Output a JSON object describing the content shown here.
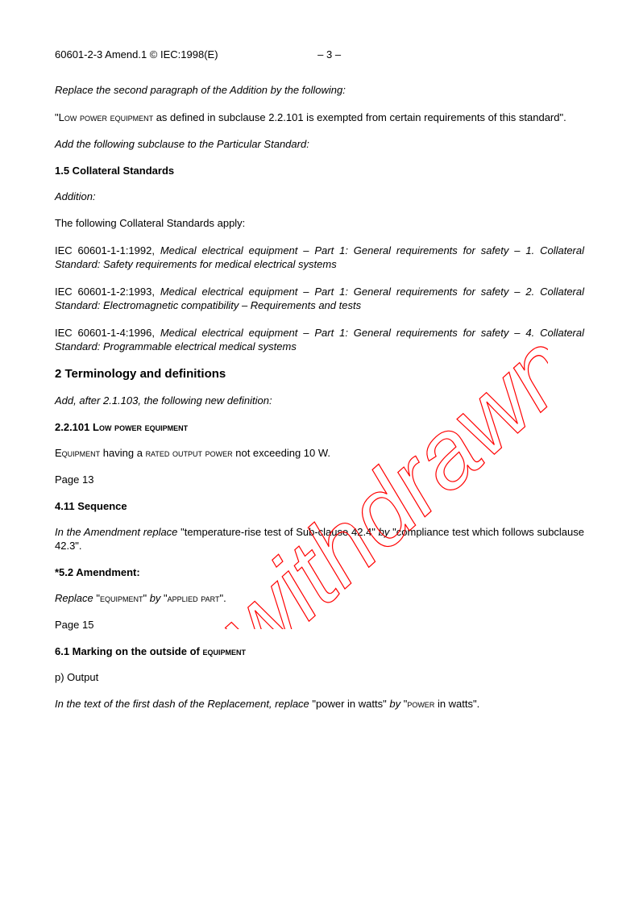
{
  "header": {
    "docnum": "60601-2-3 Amend.1 © IEC:1998(E)",
    "pagenum": "– 3 –"
  },
  "p_replace_intro": "Replace the second paragraph of the Addition by the following:",
  "p_lowpower_a": "\"L",
  "p_lowpower_b": "ow power equipment",
  "p_lowpower_c": " as defined in subclause 2.2.101 is exempted from certain requirements of this standard\".",
  "p_add_subclause": "Add the following subclause to the Particular Standard:",
  "h_1_5": "1.5    Collateral Standards",
  "p_addition": "Addition:",
  "p_collateral_apply": "The following Collateral Standards apply:",
  "ref1_a": "IEC 60601-1-1:1992, ",
  "ref1_b": "Medical electrical equipment – Part 1: General requirements for safety – 1. Collateral Standard: Safety requirements for medical electrical systems",
  "ref2_a": "IEC 60601-1-2:1993, ",
  "ref2_b": "Medical electrical equipment – Part 1: General requirements for safety – 2. Collateral Standard: Electromagnetic compatibility – Requirements and tests",
  "ref3_a": "IEC 60601-1-4:1996, ",
  "ref3_b": "Medical electrical equipment – Part 1: General requirements for safety – 4. Collateral Standard: Programmable electrical medical systems",
  "h_2": "2  Terminology and definitions",
  "p_add_after": "Add, after 2.1.103, the following new definition:",
  "h_2_2_101_num": "2.2.101  ",
  "h_2_2_101_a": "L",
  "h_2_2_101_b": "ow power equipment",
  "p_equip_a": "E",
  "p_equip_b": "quipment",
  "p_equip_c": " having a ",
  "p_equip_d": "rated output power",
  "p_equip_e": " not exceeding 10 W.",
  "p_page13": "Page 13",
  "h_4_11": "4.11  Sequence",
  "p_4_11_a": "In the Amendment replace",
  "p_4_11_b": " \"temperature-rise test of Sub-clause 42.4\" ",
  "p_4_11_c": "by",
  "p_4_11_d": " \"compliance test which follows subclause 42.3\".",
  "h_5_2": "*5.2   Amendment:",
  "p_5_2_a": "Replace",
  "p_5_2_b": " \"",
  "p_5_2_c": "equipment",
  "p_5_2_d": "\" ",
  "p_5_2_e": "by",
  "p_5_2_f": " \"",
  "p_5_2_g": "applied part",
  "p_5_2_h": "\".",
  "p_page15": "Page 15",
  "h_6_1_a": "6.1     Marking on the outside of ",
  "h_6_1_b": "equipment",
  "p_output": "p)  Output",
  "p_6_1_a": "In the text of the first dash of the Replacement, replace",
  "p_6_1_b": " \"power in watts\" ",
  "p_6_1_c": "by",
  "p_6_1_d": " \"",
  "p_6_1_e": "power",
  "p_6_1_f": " in watts\".",
  "watermark_text": "withdrawn",
  "watermark_color": "#ff0000"
}
